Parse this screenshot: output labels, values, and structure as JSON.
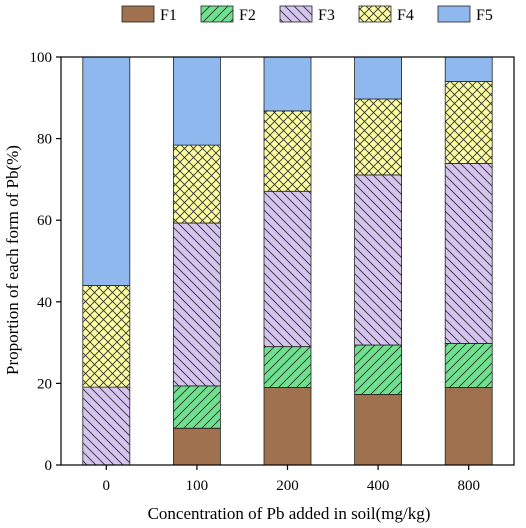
{
  "chart_data": {
    "type": "bar",
    "stacked": true,
    "xlabel": "Concentration of Pb added in soil(mg/kg)",
    "ylabel": "Proportion of each form of Pb(%)",
    "ylim": [
      0,
      100
    ],
    "yticks": [
      0,
      20,
      40,
      60,
      80,
      100
    ],
    "categories": [
      "0",
      "100",
      "200",
      "400",
      "800"
    ],
    "legend_position": "top",
    "series": [
      {
        "name": "F1",
        "color": "#a0714f",
        "pattern": "solid",
        "values": [
          0,
          9,
          19,
          17.3,
          19
        ]
      },
      {
        "name": "F2",
        "color": "#6fe08e",
        "pattern": "diag-right",
        "values": [
          0,
          10.4,
          10,
          12.1,
          10.8
        ]
      },
      {
        "name": "F3",
        "color": "#d6c4f0",
        "pattern": "diag-left",
        "values": [
          19.1,
          39.9,
          38.1,
          41.7,
          44.1
        ]
      },
      {
        "name": "F4",
        "color": "#fefea2",
        "pattern": "crosshatch",
        "values": [
          24.9,
          19.1,
          19.7,
          18.6,
          20.1
        ]
      },
      {
        "name": "F5",
        "color": "#8fb9ee",
        "pattern": "solid",
        "values": [
          56,
          21.6,
          13.2,
          10.3,
          6.0
        ]
      }
    ]
  }
}
